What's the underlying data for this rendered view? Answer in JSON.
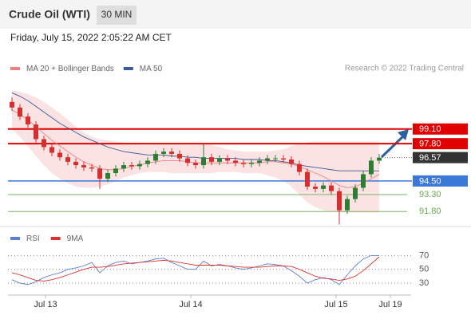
{
  "header": {
    "title": "Crude Oil (WTI)",
    "timeframe": "30 MIN",
    "timestamp": "Friday, July 15, 2022 2:05:22 AM CET",
    "credit": "Research © 2022 Trading Central"
  },
  "chart_data": [
    {
      "type": "candlestick",
      "xlim": [
        -0.5,
        49.5
      ],
      "xticks": [
        {
          "value": 4.2,
          "label": "Jul 13"
        },
        {
          "value": 22.4,
          "label": "Jul 14"
        },
        {
          "value": 40.6,
          "label": "Jul 15"
        },
        {
          "value": 47.4,
          "label": "Jul 19"
        }
      ],
      "ylim": [
        90.4,
        102.4
      ],
      "up_color": "#2e7d32",
      "down_color": "#d32f2f",
      "open": [
        101.5,
        101.0,
        100.2,
        99.5,
        98.2,
        97.5,
        97.0,
        96.6,
        96.2,
        95.9,
        95.7,
        95.6,
        94.7,
        95.2,
        95.6,
        95.9,
        95.8,
        96.0,
        96.3,
        96.9,
        97.1,
        96.9,
        96.5,
        96.1,
        95.9,
        96.6,
        96.2,
        96.5,
        96.3,
        96.1,
        96.0,
        96.1,
        96.3,
        96.5,
        96.5,
        96.4,
        96.0,
        95.3,
        94.0,
        93.8,
        94.1,
        93.6,
        91.9,
        92.9,
        93.9,
        95.1,
        96.3
      ],
      "high": [
        101.9,
        101.3,
        100.5,
        99.8,
        98.5,
        97.8,
        97.3,
        96.9,
        96.5,
        96.2,
        96.0,
        95.9,
        95.5,
        95.9,
        96.2,
        96.2,
        96.3,
        96.6,
        97.2,
        97.4,
        97.4,
        97.2,
        96.8,
        96.4,
        97.8,
        96.9,
        96.8,
        96.8,
        96.6,
        96.4,
        96.4,
        96.6,
        96.8,
        96.8,
        96.8,
        96.7,
        96.3,
        95.6,
        94.3,
        94.4,
        94.4,
        93.9,
        93.2,
        94.2,
        95.4,
        96.6,
        96.9
      ],
      "low": [
        100.7,
        99.9,
        99.2,
        97.9,
        97.2,
        96.7,
        96.3,
        95.9,
        95.6,
        95.4,
        95.3,
        93.8,
        94.4,
        94.9,
        95.3,
        95.5,
        95.5,
        95.7,
        96.0,
        96.6,
        96.6,
        96.2,
        95.8,
        95.6,
        95.6,
        95.9,
        95.9,
        96.0,
        95.8,
        95.7,
        95.7,
        95.8,
        96.0,
        96.2,
        96.1,
        95.7,
        95.0,
        93.7,
        93.5,
        93.5,
        93.3,
        90.65,
        91.6,
        92.6,
        93.6,
        94.8,
        96.0
      ],
      "close": [
        101.0,
        100.2,
        99.5,
        98.2,
        97.5,
        97.0,
        96.6,
        96.2,
        95.9,
        95.7,
        95.6,
        94.7,
        95.2,
        95.6,
        95.9,
        95.8,
        96.0,
        96.3,
        96.9,
        97.1,
        96.9,
        96.5,
        96.1,
        95.9,
        96.6,
        96.2,
        96.5,
        96.3,
        96.1,
        96.0,
        96.1,
        96.3,
        96.5,
        96.5,
        96.4,
        96.0,
        95.3,
        94.0,
        93.8,
        94.1,
        93.6,
        91.9,
        92.9,
        93.9,
        95.1,
        96.3,
        96.57
      ],
      "series": [
        {
          "name": "MA 20 + Bollinger Bands",
          "color": "#f08080",
          "values": [
            100.8,
            100.4,
            99.9,
            99.3,
            98.7,
            98.1,
            97.6,
            97.1,
            96.6,
            96.2,
            95.9,
            95.6,
            95.5,
            95.5,
            95.6,
            95.8,
            95.9,
            96.1,
            96.2,
            96.3,
            96.3,
            96.3,
            96.2,
            96.1,
            96.1,
            96.1,
            96.1,
            96.1,
            96.1,
            96.1,
            96.1,
            96.1,
            96.2,
            96.2,
            96.1,
            96.0,
            95.8,
            95.5,
            95.2,
            94.9,
            94.5,
            94.1,
            93.9,
            94.0,
            94.3,
            94.7,
            95.1
          ],
          "upper": [
            102.5,
            102.4,
            102.2,
            101.9,
            101.5,
            101.0,
            100.5,
            99.9,
            99.3,
            98.8,
            98.4,
            98.2,
            98.1,
            98.0,
            97.9,
            97.8,
            97.7,
            97.7,
            97.7,
            97.7,
            97.7,
            97.7,
            97.7,
            97.7,
            97.8,
            97.7,
            97.5,
            97.3,
            97.2,
            97.1,
            97.1,
            97.1,
            97.1,
            97.2,
            97.3,
            97.6,
            97.8,
            97.9,
            98.0,
            98.0,
            98.0,
            98.0,
            98.0,
            98.0,
            98.0,
            98.0,
            98.0
          ],
          "lower": [
            99.1,
            98.4,
            97.6,
            96.7,
            95.9,
            95.2,
            94.7,
            94.3,
            94.0,
            93.9,
            93.9,
            94.0,
            94.2,
            94.5,
            94.8,
            95.0,
            95.2,
            95.3,
            95.3,
            95.3,
            95.2,
            95.2,
            95.2,
            95.2,
            95.2,
            95.2,
            95.3,
            95.3,
            95.3,
            95.2,
            95.2,
            95.2,
            95.0,
            94.8,
            94.5,
            94.0,
            93.3,
            92.6,
            92.2,
            91.9,
            91.8,
            91.7,
            91.7,
            91.7,
            91.7,
            91.7,
            91.7
          ]
        },
        {
          "name": "MA 50",
          "color": "#3a5a99",
          "values": [
            102.3,
            102.0,
            101.6,
            101.1,
            100.6,
            100.1,
            99.6,
            99.2,
            98.8,
            98.4,
            98.1,
            97.8,
            97.5,
            97.3,
            97.1,
            97.0,
            96.9,
            96.8,
            96.8,
            96.8,
            96.7,
            96.7,
            96.6,
            96.6,
            96.5,
            96.5,
            96.5,
            96.5,
            96.5,
            96.4,
            96.4,
            96.4,
            96.3,
            96.3,
            96.2,
            96.1,
            95.9,
            95.8,
            95.7,
            95.6,
            95.5,
            95.4,
            95.4,
            95.4,
            95.4,
            95.4,
            95.4
          ]
        }
      ],
      "levels": [
        {
          "value": 99.1,
          "label": "99.10",
          "color": "#e00000",
          "kind": "box"
        },
        {
          "value": 97.8,
          "label": "97.80",
          "color": "#e00000",
          "kind": "box"
        },
        {
          "value": 96.57,
          "color": "#333333",
          "kind": "current"
        },
        {
          "value": 94.5,
          "label": "94.50",
          "color": "#3c78d8",
          "kind": "box"
        },
        {
          "value": 93.3,
          "label": "93.30",
          "color": "#6aa84f",
          "kind": "plain"
        },
        {
          "value": 91.8,
          "label": "91.80",
          "color": "#6aa84f",
          "kind": "plain"
        }
      ]
    },
    {
      "type": "line",
      "xlim": [
        -0.5,
        49.5
      ],
      "ylim": [
        15,
        82
      ],
      "yticks": [
        70,
        50,
        30
      ],
      "series": [
        {
          "name": "RSI",
          "color": "#5b7fd6",
          "values": [
            35,
            30,
            28,
            32,
            38,
            42,
            45,
            50,
            52,
            55,
            60,
            45,
            55,
            60,
            62,
            58,
            60,
            62,
            65,
            66,
            60,
            55,
            50,
            50,
            62,
            55,
            57,
            55,
            52,
            50,
            52,
            55,
            58,
            57,
            55,
            48,
            40,
            30,
            35,
            38,
            35,
            28,
            42,
            55,
            65,
            70,
            70
          ]
        },
        {
          "name": "9MA",
          "color": "#e03030",
          "values": [
            45,
            42,
            38,
            34,
            33,
            35,
            38,
            42,
            46,
            50,
            53,
            53,
            54,
            56,
            58,
            59,
            60,
            61,
            62,
            63,
            62,
            60,
            58,
            56,
            56,
            56,
            56,
            55,
            54,
            53,
            53,
            53,
            54,
            55,
            55,
            54,
            50,
            45,
            40,
            37,
            36,
            34,
            36,
            40,
            48,
            58,
            68
          ]
        }
      ]
    }
  ]
}
